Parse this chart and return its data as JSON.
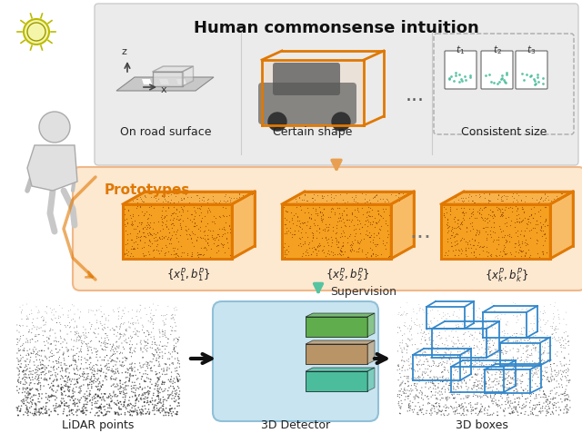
{
  "title": "Human commonsense intuition",
  "prototypes_label": "Prototypes",
  "supervision_label": "Supervision",
  "caption1": "On road surface",
  "caption2": "Certain shape",
  "caption3": "Consistent size",
  "caption4": "LiDAR points",
  "caption5": "3D Detector",
  "caption6": "3D boxes",
  "t_labels": [
    "$t_1$",
    "$t_2$",
    "$t_3$"
  ],
  "bg_color": "#ffffff",
  "top_panel_bg": "#ebebeb",
  "proto_panel_bg": "#fde8d0",
  "proto_panel_edge": "#f0b888",
  "orange_color": "#F5A020",
  "orange_border": "#E07800",
  "orange_light": "#FDCF8A",
  "supervision_color": "#55C4A0",
  "black_arrow_color": "#111111",
  "title_fontsize": 13,
  "caption_fontsize": 9,
  "proto_title_color": "#E07800",
  "teal_color": "#44BB99",
  "blue_box_color": "#3388CC",
  "det_panel_color": "#C8E4F0",
  "det_panel_edge": "#90C0D8"
}
